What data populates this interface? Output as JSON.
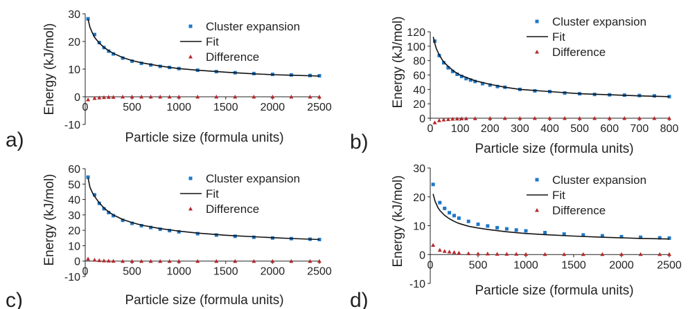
{
  "colors": {
    "cluster": "#1f78c8",
    "fit": "#111111",
    "difference": "#b5282c",
    "axis": "#222222"
  },
  "chart_data": [
    {
      "panel_label": "a)",
      "type": "scatter",
      "xlabel": "Particle size (formula units)",
      "ylabel": "Energy (kJ/mol)",
      "xlim": [
        0,
        2500
      ],
      "ylim": [
        -10,
        30
      ],
      "xticks": [
        0,
        500,
        1000,
        1500,
        2000,
        2500
      ],
      "yticks": [
        -10,
        0,
        10,
        20,
        30
      ],
      "legend": {
        "position": "top-right",
        "entries": [
          "Cluster expansion",
          "Fit",
          "Difference"
        ]
      },
      "series": [
        {
          "name": "Cluster expansion",
          "marker": "square",
          "x": [
            30,
            100,
            150,
            200,
            250,
            300,
            400,
            500,
            600,
            700,
            800,
            900,
            1000,
            1200,
            1400,
            1600,
            1800,
            2000,
            2200,
            2400,
            2500
          ],
          "y": [
            28.2,
            22.5,
            19.6,
            17.8,
            16.5,
            15.5,
            14.0,
            12.9,
            12.1,
            11.5,
            11.0,
            10.6,
            10.2,
            9.6,
            9.1,
            8.7,
            8.4,
            8.1,
            7.9,
            7.7,
            7.6
          ]
        },
        {
          "name": "Fit",
          "marker": "line",
          "x": [
            30,
            50,
            80,
            100,
            150,
            200,
            250,
            300,
            400,
            500,
            600,
            800,
            1000,
            1200,
            1500,
            1800,
            2000,
            2200,
            2500
          ],
          "y": [
            28.0,
            25.2,
            22.8,
            21.5,
            19.4,
            17.9,
            16.7,
            15.7,
            14.2,
            13.1,
            12.3,
            11.1,
            10.2,
            9.6,
            8.9,
            8.3,
            8.0,
            7.8,
            7.5
          ]
        },
        {
          "name": "Difference",
          "marker": "triangle",
          "x": [
            30,
            100,
            150,
            200,
            250,
            300,
            400,
            500,
            600,
            700,
            800,
            900,
            1000,
            1200,
            1400,
            1600,
            1800,
            2000,
            2200,
            2400,
            2500
          ],
          "y": [
            -1.0,
            -0.5,
            -0.3,
            -0.2,
            -0.1,
            -0.1,
            0,
            0,
            0,
            0,
            0,
            0,
            0,
            0,
            0,
            0,
            0,
            0,
            0,
            0,
            0
          ]
        }
      ]
    },
    {
      "panel_label": "b)",
      "type": "scatter",
      "xlabel": "Particle size (formula units)",
      "ylabel": "Energy (kJ/mol)",
      "xlim": [
        0,
        800
      ],
      "ylim": [
        0,
        120
      ],
      "xticks": [
        0,
        100,
        200,
        300,
        400,
        500,
        600,
        700,
        800
      ],
      "yticks": [
        0,
        20,
        40,
        60,
        80,
        100,
        120
      ],
      "legend": {
        "position": "top-right",
        "entries": [
          "Cluster expansion",
          "Fit",
          "Difference"
        ]
      },
      "series": [
        {
          "name": "Cluster expansion",
          "marker": "square",
          "x": [
            15,
            30,
            45,
            60,
            75,
            90,
            105,
            120,
            135,
            150,
            175,
            200,
            225,
            250,
            300,
            350,
            400,
            450,
            500,
            550,
            600,
            650,
            700,
            750,
            800
          ],
          "y": [
            107,
            87,
            77,
            70,
            65,
            61,
            58,
            55,
            53,
            51,
            48,
            46,
            44,
            43,
            40,
            38,
            37,
            35,
            34,
            33,
            32.5,
            32,
            31.5,
            31,
            30
          ]
        },
        {
          "name": "Fit",
          "marker": "line",
          "x": [
            10,
            15,
            20,
            30,
            40,
            50,
            60,
            80,
            100,
            125,
            150,
            200,
            250,
            300,
            400,
            500,
            600,
            700,
            800
          ],
          "y": [
            113,
            104,
            97,
            88,
            81,
            76,
            72,
            65,
            60,
            56,
            52,
            47,
            43,
            40,
            37,
            34,
            32.5,
            31,
            30
          ]
        },
        {
          "name": "Difference",
          "marker": "triangle",
          "x": [
            15,
            30,
            45,
            60,
            75,
            90,
            105,
            120,
            150,
            200,
            250,
            300,
            350,
            400,
            450,
            500,
            550,
            600,
            650,
            700,
            750,
            800
          ],
          "y": [
            -6,
            -3,
            -2,
            -1.5,
            -1,
            -0.7,
            -0.5,
            -0.4,
            -0.2,
            0,
            0,
            0,
            0,
            0,
            0,
            0,
            0,
            0,
            0,
            0,
            0,
            0
          ]
        }
      ]
    },
    {
      "panel_label": "c)",
      "type": "scatter",
      "xlabel": "Particle size (formula units)",
      "ylabel": "Energy (kJ/mol)",
      "xlim": [
        0,
        2500
      ],
      "ylim": [
        -10,
        60
      ],
      "xticks": [
        0,
        500,
        1000,
        1500,
        2000,
        2500
      ],
      "yticks": [
        -10,
        0,
        10,
        20,
        30,
        40,
        50,
        60
      ],
      "legend": {
        "position": "top-right",
        "entries": [
          "Cluster expansion",
          "Fit",
          "Difference"
        ]
      },
      "series": [
        {
          "name": "Cluster expansion",
          "marker": "square",
          "x": [
            30,
            100,
            150,
            200,
            250,
            300,
            400,
            500,
            600,
            700,
            800,
            900,
            1000,
            1200,
            1400,
            1600,
            1800,
            2000,
            2200,
            2400,
            2500
          ],
          "y": [
            54.5,
            43.0,
            37.5,
            34.0,
            31.5,
            29.5,
            26.5,
            24.5,
            23.0,
            21.8,
            20.7,
            19.8,
            19.0,
            17.8,
            16.9,
            16.1,
            15.5,
            15.0,
            14.6,
            14.2,
            14.0
          ]
        },
        {
          "name": "Fit",
          "marker": "line",
          "x": [
            30,
            50,
            80,
            100,
            150,
            200,
            250,
            300,
            400,
            500,
            600,
            800,
            1000,
            1200,
            1500,
            1800,
            2000,
            2200,
            2500
          ],
          "y": [
            54.0,
            48.0,
            44.0,
            42.0,
            37.8,
            34.5,
            32.0,
            30.0,
            27.0,
            25.0,
            23.4,
            21.1,
            19.5,
            18.2,
            16.8,
            15.8,
            15.2,
            14.7,
            14.0
          ]
        },
        {
          "name": "Difference",
          "marker": "triangle",
          "x": [
            30,
            100,
            150,
            200,
            250,
            300,
            400,
            500,
            600,
            700,
            800,
            900,
            1000,
            1200,
            1400,
            1600,
            1800,
            2000,
            2200,
            2400,
            2500
          ],
          "y": [
            1.5,
            0.8,
            0.5,
            0.3,
            0.2,
            0.1,
            0,
            0,
            0,
            0,
            0,
            0,
            0,
            0,
            0,
            0,
            0,
            0,
            0,
            0,
            0
          ]
        }
      ]
    },
    {
      "panel_label": "d)",
      "type": "scatter",
      "xlabel": "Particle size (formula units)",
      "ylabel": "Energy (kJ/mol)",
      "xlim": [
        0,
        2500
      ],
      "ylim": [
        -10,
        30
      ],
      "xticks": [
        0,
        500,
        1000,
        1500,
        2000,
        2500
      ],
      "yticks": [
        -10,
        0,
        10,
        20,
        30
      ],
      "legend": {
        "position": "top-right",
        "entries": [
          "Cluster expansion",
          "Fit",
          "Difference"
        ]
      },
      "series": [
        {
          "name": "Cluster expansion",
          "marker": "square",
          "x": [
            30,
            100,
            150,
            200,
            250,
            300,
            400,
            500,
            600,
            700,
            800,
            900,
            1000,
            1200,
            1400,
            1600,
            1800,
            2000,
            2200,
            2400,
            2500
          ],
          "y": [
            24.3,
            18.0,
            16.0,
            14.5,
            13.5,
            12.6,
            11.5,
            10.5,
            9.9,
            9.3,
            8.9,
            8.5,
            8.2,
            7.6,
            7.1,
            6.8,
            6.5,
            6.2,
            6.0,
            5.8,
            5.7
          ]
        },
        {
          "name": "Fit",
          "marker": "line",
          "x": [
            30,
            50,
            80,
            100,
            150,
            200,
            250,
            300,
            400,
            500,
            600,
            800,
            1000,
            1200,
            1500,
            1800,
            2000,
            2200,
            2500
          ],
          "y": [
            21.0,
            18.5,
            16.3,
            15.3,
            13.6,
            12.4,
            11.5,
            10.8,
            9.8,
            9.2,
            8.7,
            7.9,
            7.3,
            6.9,
            6.4,
            6.0,
            5.8,
            5.6,
            5.4
          ]
        },
        {
          "name": "Difference",
          "marker": "triangle",
          "x": [
            30,
            100,
            150,
            200,
            250,
            300,
            400,
            500,
            600,
            700,
            800,
            900,
            1000,
            1200,
            1400,
            1600,
            1800,
            2000,
            2200,
            2400,
            2500
          ],
          "y": [
            3.3,
            1.6,
            1.2,
            1.0,
            0.8,
            0.6,
            0.4,
            0.3,
            0.3,
            0.2,
            0.2,
            0.2,
            0.1,
            0.1,
            0.1,
            0.1,
            0.1,
            0.1,
            0.1,
            0.1,
            0.1
          ]
        }
      ]
    }
  ]
}
